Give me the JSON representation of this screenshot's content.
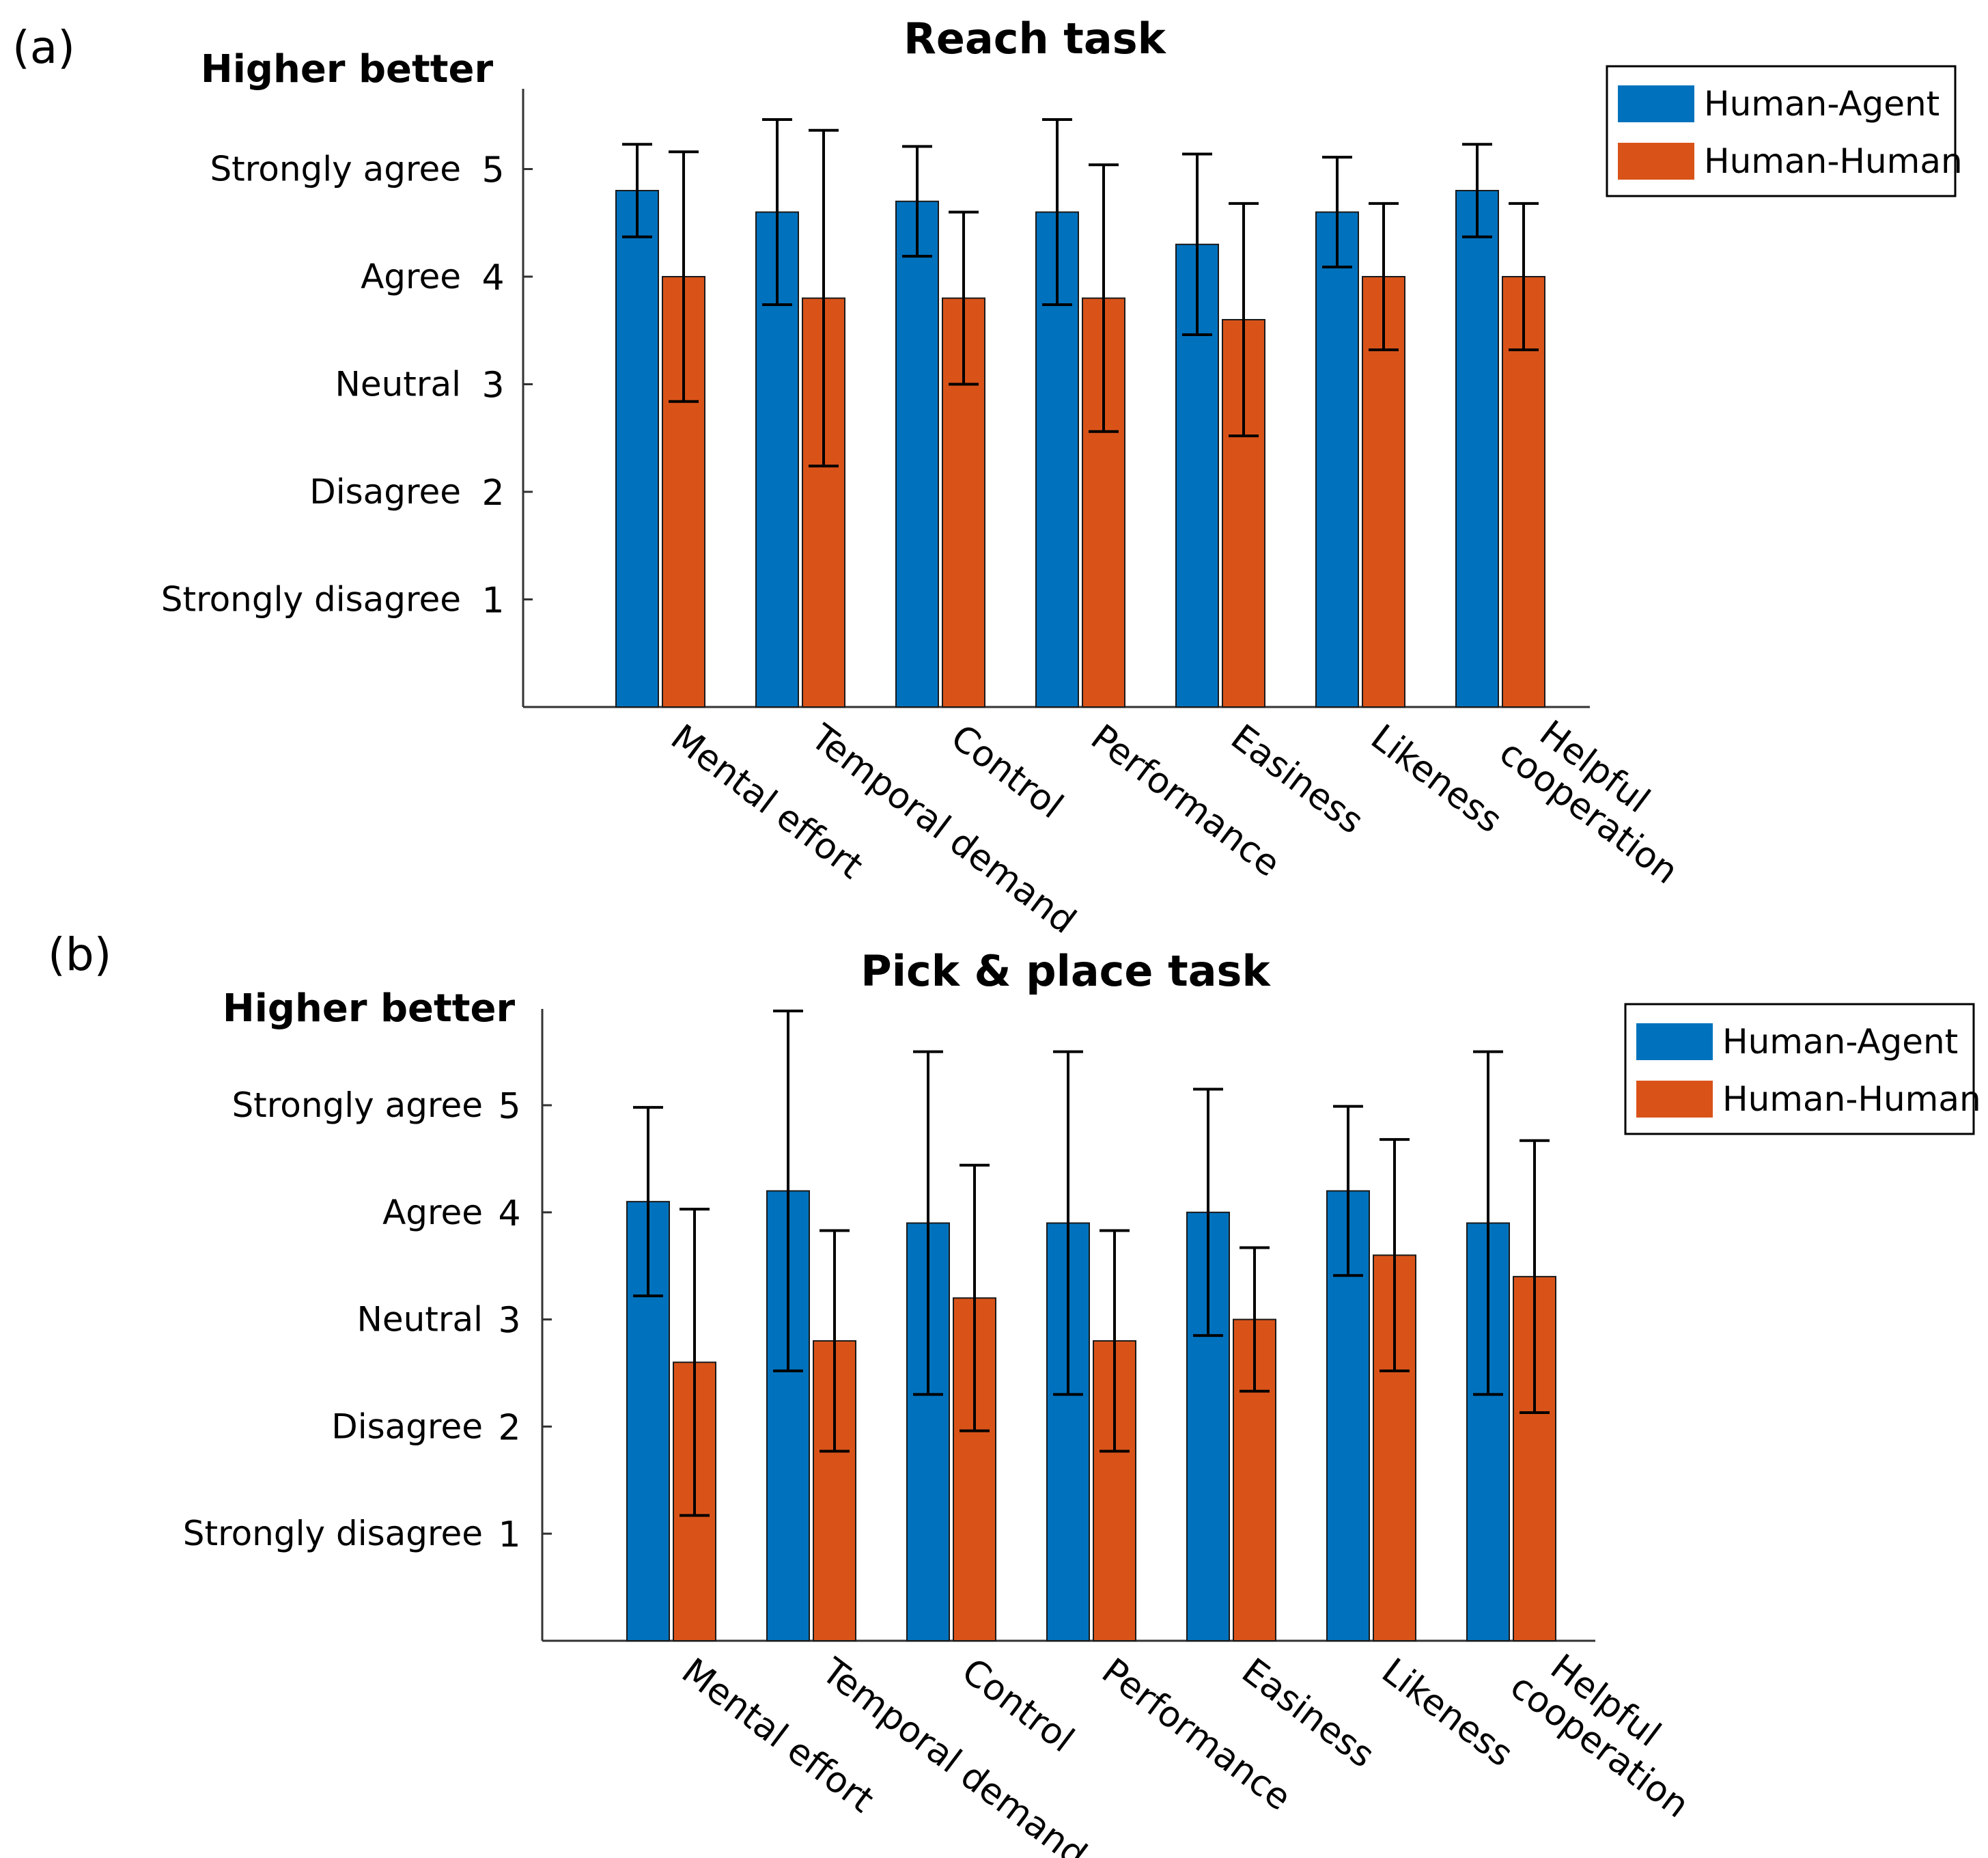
{
  "chart_data": [
    {
      "type": "bar",
      "panel_label": "(a)",
      "title": "Reach task",
      "higher_better": "Higher better",
      "categories": [
        "Mental effort",
        "Temporal demand",
        "Control",
        "Performance",
        "Easiness",
        "Likeness",
        "Helpful cooperation"
      ],
      "series": [
        {
          "name": "Human-Agent",
          "color": "#0072BD",
          "values": [
            4.8,
            4.6,
            4.7,
            4.6,
            4.3,
            4.6,
            4.8
          ],
          "err_low": [
            4.37,
            3.74,
            4.19,
            3.74,
            3.46,
            4.09,
            4.37
          ],
          "err_high": [
            5.23,
            5.46,
            5.21,
            5.46,
            5.14,
            5.11,
            5.23
          ]
        },
        {
          "name": "Human-Human",
          "color": "#D95319",
          "values": [
            4.0,
            3.8,
            3.8,
            3.8,
            3.6,
            4.0,
            4.0
          ],
          "err_low": [
            2.84,
            2.24,
            3.0,
            2.56,
            2.52,
            3.32,
            3.32
          ],
          "err_high": [
            5.16,
            5.36,
            4.6,
            5.04,
            4.68,
            4.68,
            4.68
          ]
        }
      ],
      "yticks": [
        1,
        2,
        3,
        4,
        5
      ],
      "ylabels": [
        "Strongly disagree",
        "Disagree",
        "Neutral",
        "Agree",
        "Strongly agree"
      ],
      "ylim": [
        0,
        5.75
      ],
      "legend": "top-right"
    },
    {
      "type": "bar",
      "panel_label": "(b)",
      "title": "Pick & place task",
      "higher_better": "Higher better",
      "categories": [
        "Mental effort",
        "Temporal demand",
        "Control",
        "Performance",
        "Easiness",
        "Likeness",
        "Helpful cooperation"
      ],
      "series": [
        {
          "name": "Human-Agent",
          "color": "#0072BD",
          "values": [
            4.1,
            4.2,
            3.9,
            3.9,
            4.0,
            4.2,
            3.9
          ],
          "err_low": [
            3.22,
            2.52,
            2.3,
            2.3,
            2.85,
            3.41,
            2.3
          ],
          "err_high": [
            4.98,
            5.88,
            5.5,
            5.5,
            5.15,
            4.99,
            5.5
          ]
        },
        {
          "name": "Human-Human",
          "color": "#D95319",
          "values": [
            2.6,
            2.8,
            3.2,
            2.8,
            3.0,
            3.6,
            3.4
          ],
          "err_low": [
            1.17,
            1.77,
            1.96,
            1.77,
            2.33,
            2.52,
            2.13
          ],
          "err_high": [
            4.03,
            3.83,
            4.44,
            3.83,
            3.67,
            4.68,
            4.67
          ]
        }
      ],
      "yticks": [
        1,
        2,
        3,
        4,
        5
      ],
      "ylabels": [
        "Strongly disagree",
        "Disagree",
        "Neutral",
        "Agree",
        "Strongly agree"
      ],
      "ylim": [
        0,
        5.9
      ],
      "legend": "top-right"
    }
  ]
}
